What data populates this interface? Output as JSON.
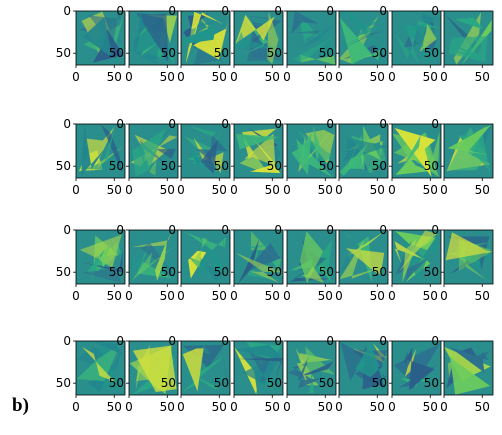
{
  "panel_label": "b)",
  "chart_data": {
    "type": "heatmap",
    "layout": {
      "rows": 4,
      "cols": 8
    },
    "colormap": "viridis",
    "tick_labels": {
      "x": [
        "0",
        "50"
      ],
      "y": [
        "0",
        "50"
      ]
    },
    "xlim": [
      0,
      64
    ],
    "ylim": [
      64,
      0
    ],
    "image_size": [
      64,
      64
    ]
  }
}
